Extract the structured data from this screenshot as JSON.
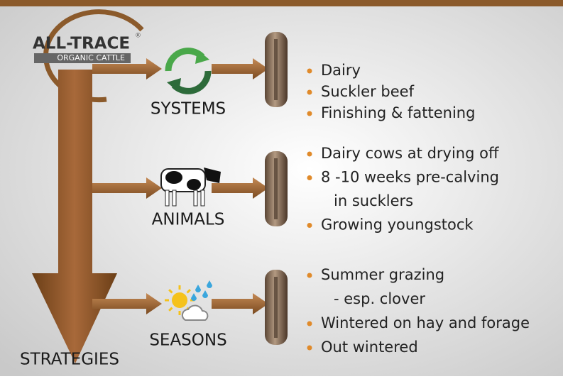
{
  "logo": {
    "title": "ALL-TRACE",
    "mark": "®",
    "subtitle": "ORGANIC CATTLE"
  },
  "rows": [
    {
      "label": "SYSTEMS",
      "items": [
        [
          "Dairy"
        ],
        [
          "Suckler beef"
        ],
        [
          "Finishing & fattening"
        ]
      ]
    },
    {
      "label": "ANIMALS",
      "items": [
        [
          "Dairy cows at drying off"
        ],
        [
          "8 -10 weeks pre-calving",
          "in sucklers"
        ],
        [
          "Growing youngstock"
        ]
      ]
    },
    {
      "label": "SEASONS",
      "items": [
        [
          "Summer grazing",
          "- esp. clover"
        ],
        [
          "Wintered on hay and forage"
        ],
        [
          "Out wintered"
        ]
      ]
    }
  ],
  "footer": "STRATEGIES"
}
